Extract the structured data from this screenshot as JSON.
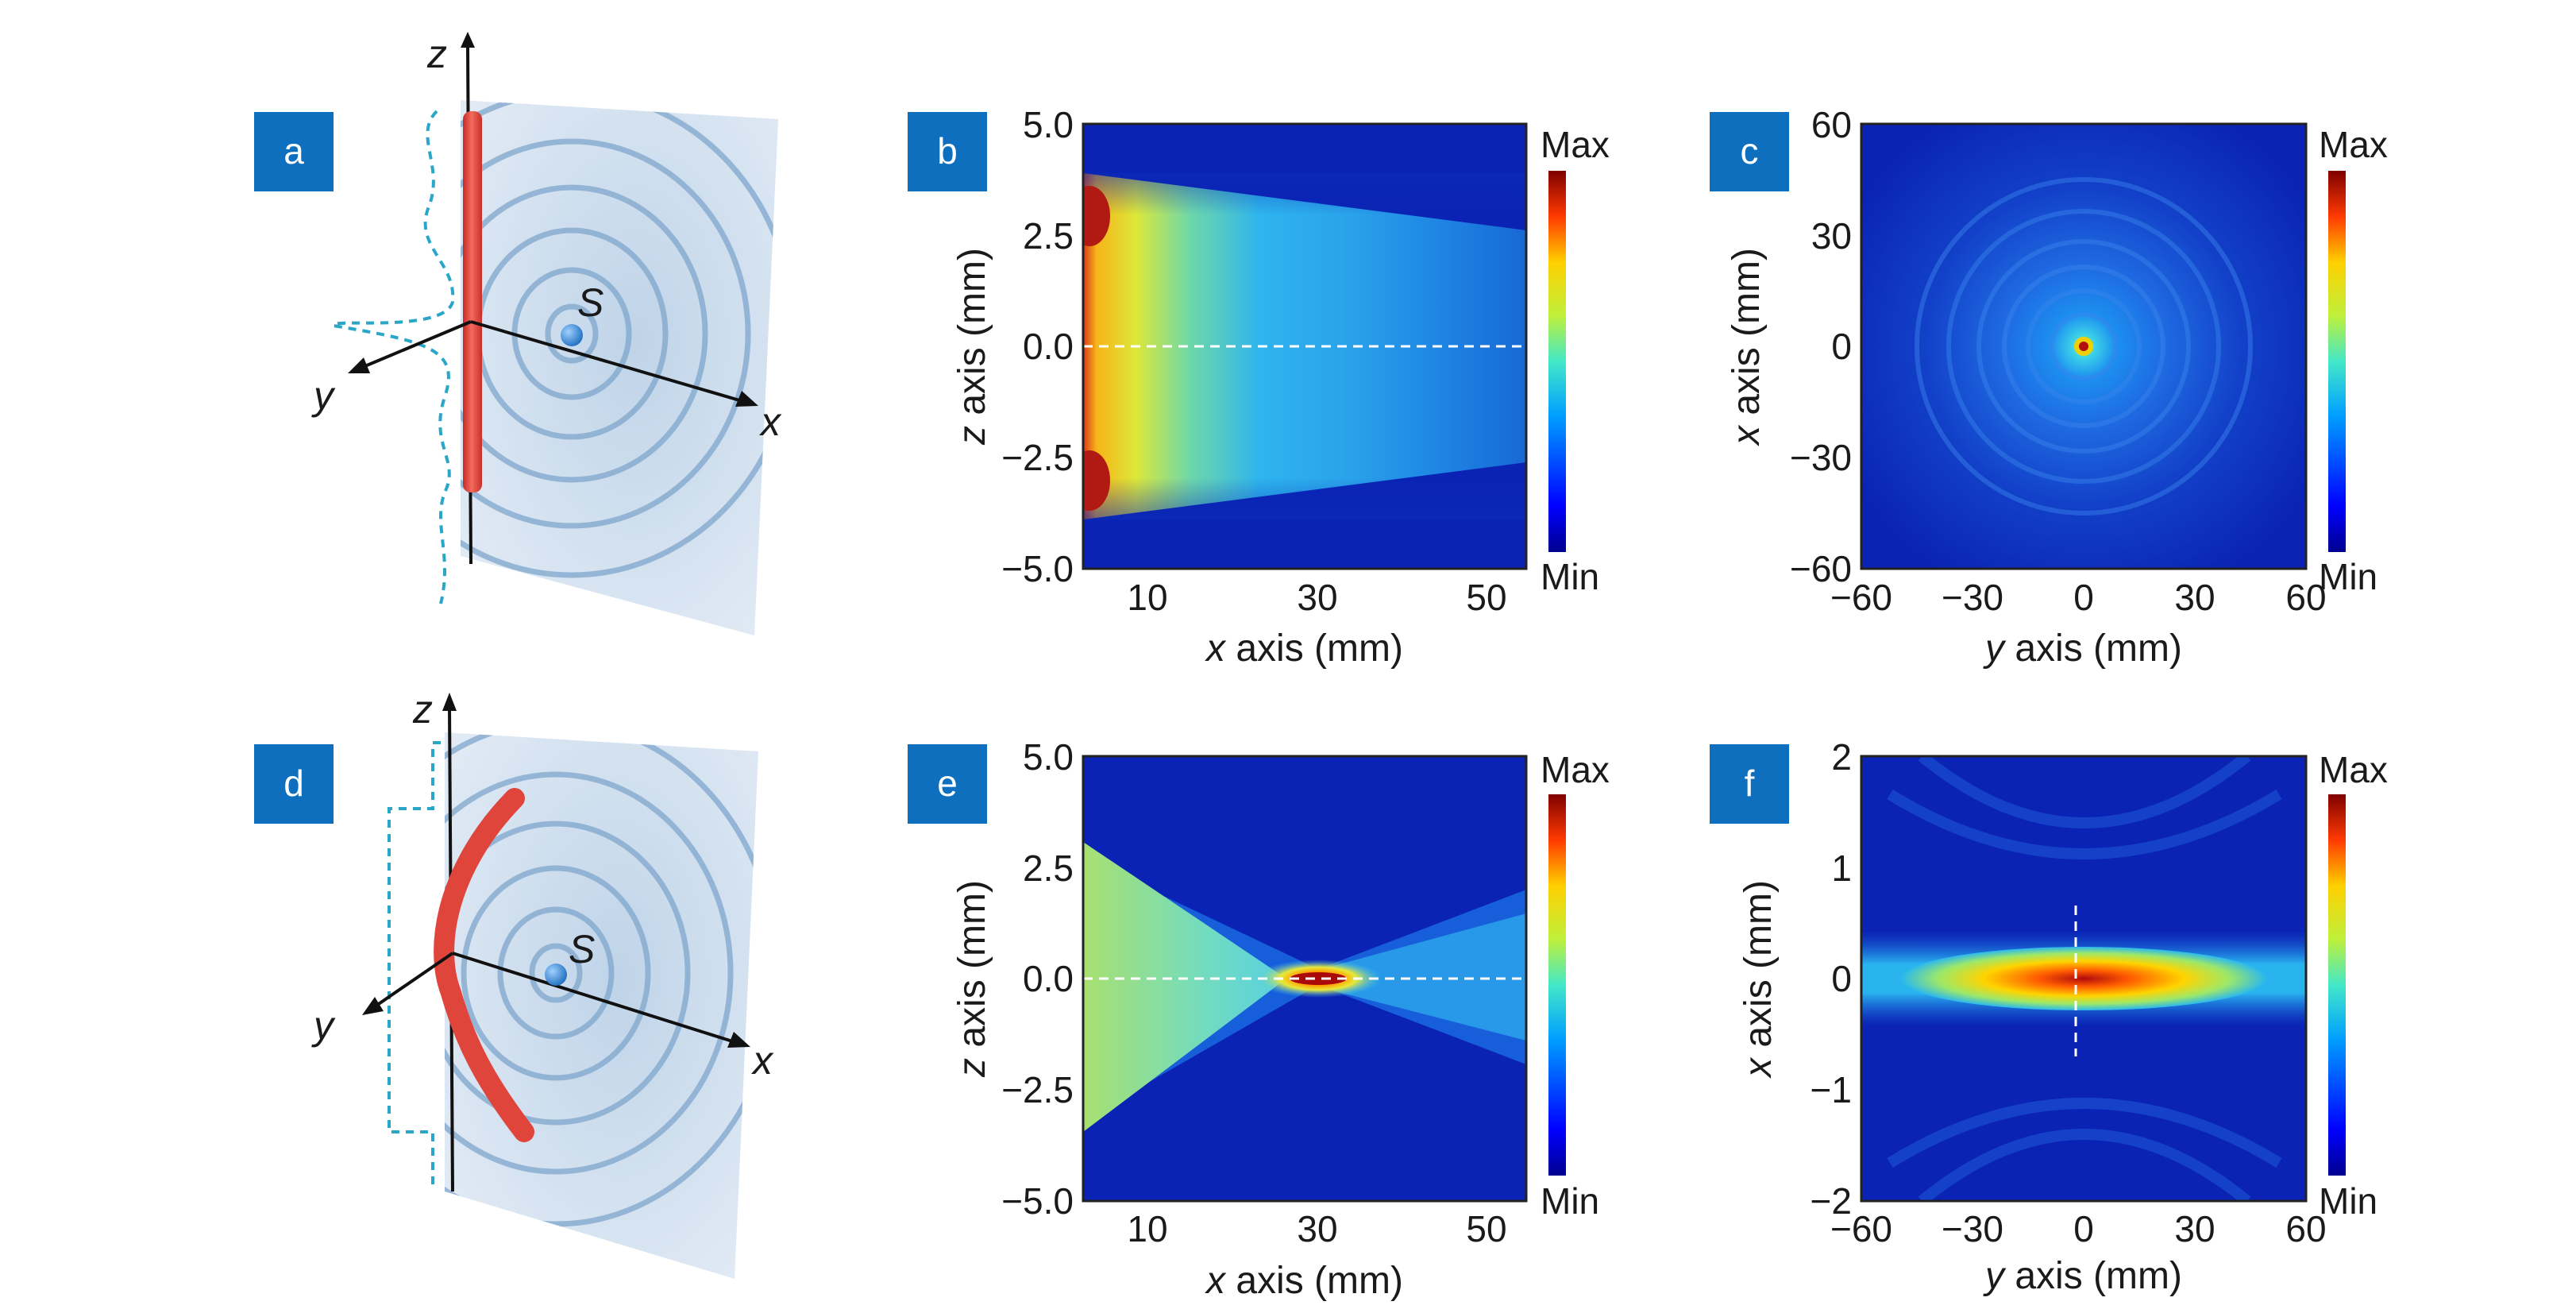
{
  "panels": {
    "a": {
      "label": "a",
      "axis_x": "x",
      "axis_y": "y",
      "axis_z": "z",
      "source": "S"
    },
    "d": {
      "label": "d",
      "axis_x": "x",
      "axis_y": "y",
      "axis_z": "z",
      "source": "S"
    },
    "b": {
      "label": "b",
      "xlabel_var": "x",
      "xlabel_rest": " axis (mm)",
      "ylabel_var": "z",
      "ylabel_rest": " axis (mm)"
    },
    "c": {
      "label": "c",
      "xlabel_var": "y",
      "xlabel_rest": " axis (mm)",
      "ylabel_var": "x",
      "ylabel_rest": " axis (mm)"
    },
    "e": {
      "label": "e",
      "xlabel_var": "x",
      "xlabel_rest": " axis (mm)",
      "ylabel_var": "z",
      "ylabel_rest": " axis (mm)"
    },
    "f": {
      "label": "f",
      "xlabel_var": "y",
      "xlabel_rest": " axis (mm)",
      "ylabel_var": "x",
      "ylabel_rest": " axis (mm)"
    }
  },
  "colorbar": {
    "max_label": "Max",
    "min_label": "Min"
  },
  "colors": {
    "panel_badge": "#0d6fbe",
    "beam_red": "#e0453c",
    "dashed_blue": "#2aa6c8"
  },
  "chart_data": [
    {
      "panel": "b",
      "type": "heatmap",
      "xlim": [
        3,
        55
      ],
      "ylim": [
        -5.0,
        5.0
      ],
      "xticks": [
        "10",
        "30",
        "50"
      ],
      "yticks": [
        "5.0",
        "2.5",
        "0.0",
        "−2.5",
        "−5.0"
      ],
      "xlabel": "x axis (mm)",
      "ylabel": "z axis (mm)",
      "colorbar": [
        "Max",
        "Min"
      ],
      "dashed_line_z": 0.0
    },
    {
      "panel": "c",
      "type": "heatmap",
      "xlim": [
        -60,
        60
      ],
      "ylim": [
        -60,
        60
      ],
      "xticks": [
        "−60",
        "−30",
        "0",
        "30",
        "60"
      ],
      "yticks": [
        "60",
        "30",
        "0",
        "−30",
        "−60"
      ],
      "xlabel": "y axis (mm)",
      "ylabel": "x axis (mm)",
      "colorbar": [
        "Max",
        "Min"
      ]
    },
    {
      "panel": "e",
      "type": "heatmap",
      "xlim": [
        3,
        55
      ],
      "ylim": [
        -5.0,
        5.0
      ],
      "xticks": [
        "10",
        "30",
        "50"
      ],
      "yticks": [
        "5.0",
        "2.5",
        "0.0",
        "−2.5",
        "−5.0"
      ],
      "xlabel": "x axis (mm)",
      "ylabel": "z axis (mm)",
      "colorbar": [
        "Max",
        "Min"
      ],
      "dashed_line_z": 0.0,
      "focus_x": 29
    },
    {
      "panel": "f",
      "type": "heatmap",
      "xlim": [
        -60,
        60
      ],
      "ylim": [
        -2,
        2
      ],
      "xticks": [
        "−60",
        "−30",
        "0",
        "30",
        "60"
      ],
      "yticks": [
        "2",
        "1",
        "0",
        "−1",
        "−2"
      ],
      "xlabel": "y axis (mm)",
      "ylabel": "x axis (mm)",
      "colorbar": [
        "Max",
        "Min"
      ]
    }
  ]
}
